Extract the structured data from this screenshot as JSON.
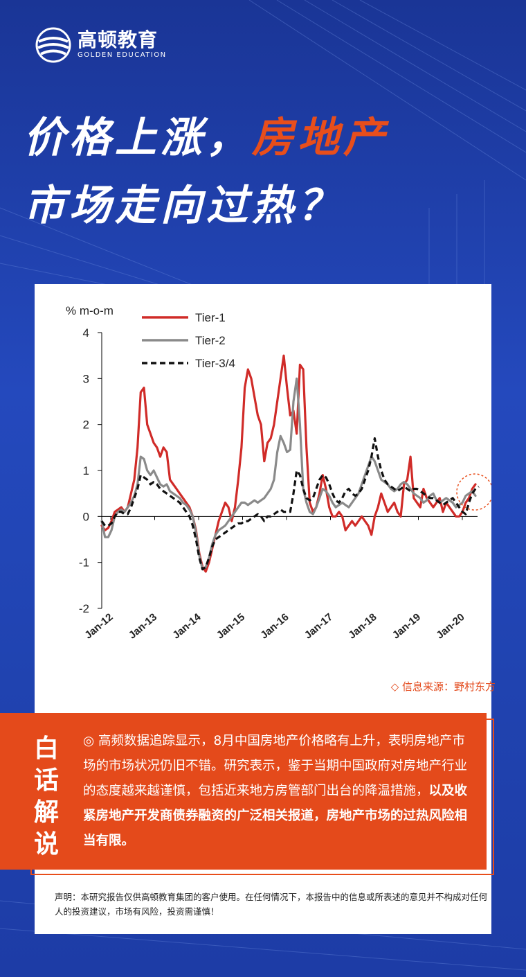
{
  "logo": {
    "cn": "高顿教育",
    "en": "GOLDEN EDUCATION"
  },
  "headline": {
    "line1_a": "价格上涨，",
    "line1_b": "房地产",
    "line2": "市场走向过热？"
  },
  "colors": {
    "accent": "#e84e1b",
    "background": "#1e3ea8"
  },
  "chart_data": {
    "type": "line",
    "ylabel": "% m-o-m",
    "ylim": [
      -2,
      4
    ],
    "yticks": [
      4,
      3,
      2,
      1,
      0,
      -1,
      -2
    ],
    "xticks": [
      "Jan-12",
      "Jan-13",
      "Jan-14",
      "Jan-15",
      "Jan-16",
      "Jan-17",
      "Jan-18",
      "Jan-19",
      "Jan-20"
    ],
    "legend_position": "top-left",
    "grid": false,
    "series": [
      {
        "name": "Tier-1",
        "color": "#d02b28",
        "style": "solid",
        "values": [
          -0.2,
          -0.3,
          -0.25,
          -0.1,
          0.1,
          0.15,
          0.2,
          0.1,
          0.2,
          0.5,
          0.8,
          1.5,
          2.7,
          2.8,
          2.0,
          1.8,
          1.6,
          1.5,
          1.3,
          1.5,
          1.4,
          0.8,
          0.7,
          0.6,
          0.5,
          0.4,
          0.3,
          0.2,
          0.0,
          -0.3,
          -0.8,
          -1.1,
          -1.2,
          -1.0,
          -0.7,
          -0.4,
          -0.1,
          0.1,
          0.3,
          0.2,
          -0.1,
          0.2,
          0.8,
          1.5,
          2.8,
          3.2,
          3.0,
          2.6,
          2.2,
          2.0,
          1.2,
          1.6,
          1.7,
          2.0,
          2.5,
          3.0,
          3.5,
          2.8,
          2.2,
          2.3,
          1.8,
          3.3,
          3.2,
          1.5,
          0.3,
          0.1,
          0.2,
          0.5,
          0.9,
          0.6,
          0.2,
          0.0,
          0.0,
          0.1,
          0.0,
          -0.3,
          -0.2,
          -0.1,
          -0.2,
          -0.1,
          0.0,
          -0.1,
          -0.2,
          -0.4,
          0.0,
          0.2,
          0.5,
          0.3,
          0.1,
          0.2,
          0.3,
          0.1,
          0.0,
          0.7,
          0.8,
          1.3,
          0.4,
          0.3,
          0.2,
          0.6,
          0.4,
          0.3,
          0.2,
          0.3,
          0.4,
          0.1,
          0.3,
          0.2,
          0.1,
          0.0,
          0.0,
          0.1,
          0.3,
          0.4,
          0.6,
          0.7
        ]
      },
      {
        "name": "Tier-2",
        "color": "#8a8a8a",
        "style": "solid",
        "values": [
          -0.1,
          -0.45,
          -0.45,
          -0.3,
          0.0,
          0.1,
          0.15,
          0.1,
          0.2,
          0.3,
          0.45,
          0.7,
          1.3,
          1.25,
          1.0,
          0.9,
          1.0,
          0.85,
          0.7,
          0.65,
          0.7,
          0.55,
          0.5,
          0.45,
          0.4,
          0.3,
          0.25,
          0.15,
          0.0,
          -0.35,
          -0.85,
          -1.15,
          -1.1,
          -0.9,
          -0.6,
          -0.4,
          -0.3,
          -0.25,
          -0.2,
          -0.1,
          0.0,
          0.1,
          0.2,
          0.3,
          0.3,
          0.25,
          0.3,
          0.35,
          0.3,
          0.35,
          0.4,
          0.5,
          0.6,
          0.8,
          1.4,
          1.75,
          1.6,
          1.4,
          1.45,
          2.5,
          3.0,
          2.0,
          0.6,
          0.3,
          0.1,
          0.05,
          0.2,
          0.4,
          0.6,
          0.55,
          0.45,
          0.3,
          0.2,
          0.25,
          0.3,
          0.25,
          0.2,
          0.3,
          0.4,
          0.5,
          0.7,
          0.9,
          1.1,
          1.3,
          1.2,
          1.0,
          0.8,
          0.75,
          0.7,
          0.6,
          0.55,
          0.6,
          0.7,
          0.75,
          0.7,
          0.6,
          0.5,
          0.45,
          0.4,
          0.3,
          0.35,
          0.45,
          0.5,
          0.35,
          0.3,
          0.35,
          0.4,
          0.35,
          0.3,
          0.2,
          0.25,
          0.3,
          0.45,
          0.5,
          0.55,
          0.45
        ]
      },
      {
        "name": "Tier-3/4",
        "color": "#111111",
        "style": "dashed",
        "values": [
          -0.1,
          -0.2,
          -0.2,
          -0.15,
          0.0,
          0.1,
          0.1,
          0.05,
          0.05,
          0.2,
          0.4,
          0.6,
          0.9,
          0.85,
          0.8,
          0.7,
          0.75,
          0.7,
          0.6,
          0.55,
          0.5,
          0.45,
          0.4,
          0.35,
          0.3,
          0.2,
          0.1,
          0.0,
          -0.2,
          -0.5,
          -0.9,
          -1.15,
          -1.1,
          -0.9,
          -0.65,
          -0.5,
          -0.45,
          -0.4,
          -0.35,
          -0.3,
          -0.25,
          -0.2,
          -0.15,
          -0.15,
          -0.1,
          -0.1,
          -0.05,
          0.0,
          0.05,
          0.0,
          -0.1,
          0.0,
          0.0,
          0.05,
          0.1,
          0.15,
          0.1,
          0.1,
          0.1,
          0.5,
          1.0,
          0.9,
          0.6,
          0.4,
          0.35,
          0.4,
          0.6,
          0.8,
          0.9,
          0.85,
          0.7,
          0.5,
          0.35,
          0.3,
          0.4,
          0.55,
          0.6,
          0.5,
          0.45,
          0.5,
          0.6,
          0.8,
          1.0,
          1.3,
          1.7,
          1.3,
          1.0,
          0.8,
          0.7,
          0.65,
          0.6,
          0.55,
          0.6,
          0.65,
          0.6,
          0.55,
          0.6,
          0.6,
          0.55,
          0.5,
          0.45,
          0.4,
          0.4,
          0.35,
          0.3,
          0.25,
          0.3,
          0.35,
          0.4,
          0.3,
          0.2,
          0.1,
          0.05,
          0.3,
          0.5,
          0.6,
          0.65
        ]
      }
    ]
  },
  "source": "◇ 信息来源：野村东方",
  "commentary": {
    "title": [
      "白",
      "话",
      "解",
      "说"
    ],
    "bullet": "◎",
    "text_normal": "高频数据追踪显示，8月中国房地产价格略有上升，表明房地产市场的市场状况仍旧不错。研究表示，鉴于当期中国政府对房地产行业的态度越来越谨慎，包括近来地方房管部门出台的降温措施，",
    "text_bold": "以及收紧房地产开发商债券融资的广泛相关报道，房地产市场的过热风险相当有限。"
  },
  "disclaimer": "声明：本研究报告仅供高顿教育集团的客户使用。在任何情况下，本报告中的信息或所表述的意见并不构成对任何人的投资建议，市场有风险，投资需谨慎！"
}
